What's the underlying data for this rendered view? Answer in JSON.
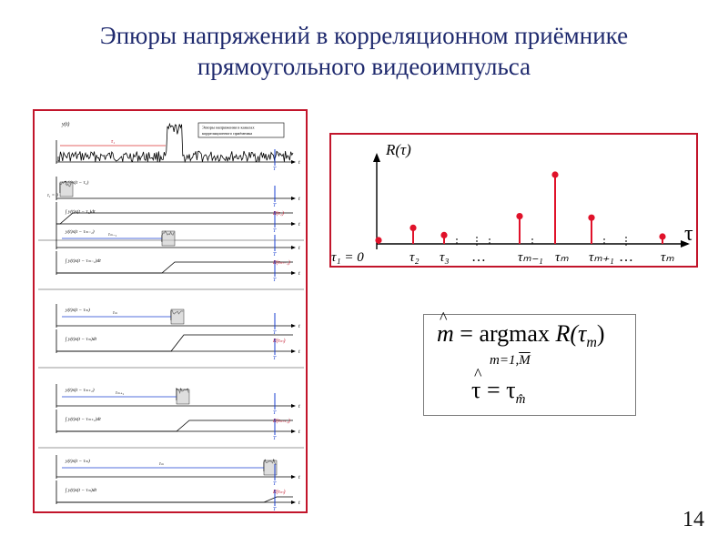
{
  "title": {
    "line1": "Эпюры напряжений в корреляционном приёмнике",
    "line2": "прямоугольного видеоимпульса"
  },
  "left_figure": {
    "legend_line1": "Эпюры напряжения в каналах",
    "legend_line2": "корреляционного приёмника",
    "top_signal_label": "y(t)",
    "top_tau_label": "τ₁",
    "t_label": "t",
    "T_label": "T",
    "channels": [
      {
        "product_label": "y(t)s(t − τ₁)",
        "integral_label": "∫ y(t)s(t − τ₁)dt",
        "result_label": "R(τ₁)",
        "tau_label": "τ₁ = 0"
      },
      {
        "product_label": "y(t)s(t − τₘ₋₁)",
        "integral_label": "∫ y(t)s(t − τₘ₋₁)dt",
        "result_label": "R(τₘ₋₁)",
        "tau_label": "τₘ₋₁"
      },
      {
        "product_label": "y(t)s(t − τₘ)",
        "integral_label": "∫ y(t)s(t − τₘ)dt",
        "result_label": "R(τₘ)",
        "tau_label": "τₘ"
      },
      {
        "product_label": "y(t)s(t − τₘ₊₁)",
        "integral_label": "∫ y(t)s(t − τₘ₊₁)dt",
        "result_label": "R(τₘ₊₁)",
        "tau_label": "τₘ₊₁"
      },
      {
        "product_label": "y(t)s(t − τₘ)",
        "integral_label": "∫ y(t)s(t − τₘ)dt",
        "result_label": "R(τₘ)",
        "tau_label": "τₘ"
      }
    ]
  },
  "right_figure": {
    "y_axis_label": "R(τ)",
    "x_axis_label": "τ",
    "tick_labels": [
      "τ₁ = 0",
      "τ₂",
      "τ₃",
      "…",
      "τₘ₋₁",
      "τₘ",
      "τₘ₊₁",
      "…",
      "τₘ"
    ],
    "stem_values": [
      0.05,
      0.22,
      0.12,
      0.0,
      0.38,
      0.95,
      0.36,
      0.0,
      0.1
    ]
  },
  "formula": {
    "m_hat": "m",
    "equals": "=",
    "argmax": "argmax",
    "R_expr": "R(τ",
    "R_sub": "m",
    "R_close": ")",
    "sub_under": "m=1,",
    "sub_under_M": "M",
    "tau_hat": "τ",
    "tau_rhs": "τ",
    "tau_rhs_sub": "m̂"
  },
  "page_number": "14",
  "colors": {
    "title": "#1f2a6e",
    "frame": "#c2152b",
    "stem": "#e0122a"
  }
}
